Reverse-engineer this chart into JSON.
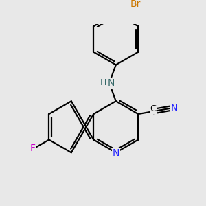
{
  "background_color": "#e8e8e8",
  "atom_colors": {
    "C": "#000000",
    "N": "#2222ff",
    "F": "#cc00cc",
    "Br": "#cc7700",
    "NH": "#336666"
  },
  "bond_color": "#000000",
  "lw": 1.6
}
